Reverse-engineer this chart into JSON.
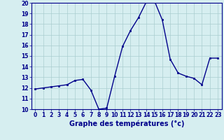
{
  "hours": [
    0,
    1,
    2,
    3,
    4,
    5,
    6,
    7,
    8,
    9,
    10,
    11,
    12,
    13,
    14,
    15,
    16,
    17,
    18,
    19,
    20,
    21,
    22,
    23
  ],
  "temps": [
    11.9,
    12.0,
    12.1,
    12.2,
    12.3,
    12.7,
    12.8,
    11.8,
    10.0,
    10.1,
    13.1,
    15.9,
    17.4,
    18.6,
    20.1,
    20.2,
    18.4,
    14.7,
    13.4,
    13.1,
    12.9,
    12.3,
    14.8,
    14.8
  ],
  "line_color": "#00008b",
  "marker": "s",
  "marker_size": 2,
  "bg_color": "#d6eef0",
  "grid_color": "#aacdd0",
  "xlabel": "Graphe des températures (°c)",
  "xlabel_fontsize": 7,
  "xlabel_color": "#00008b",
  "xlabel_fontweight": "bold",
  "ylim": [
    10,
    20
  ],
  "yticks": [
    10,
    11,
    12,
    13,
    14,
    15,
    16,
    17,
    18,
    19,
    20
  ],
  "xticks": [
    0,
    1,
    2,
    3,
    4,
    5,
    6,
    7,
    8,
    9,
    10,
    11,
    12,
    13,
    14,
    15,
    16,
    17,
    18,
    19,
    20,
    21,
    22,
    23
  ],
  "tick_color": "#00008b",
  "tick_fontsize": 5.5,
  "tick_fontweight": "bold",
  "spine_color": "#00008b",
  "linewidth": 1.0
}
